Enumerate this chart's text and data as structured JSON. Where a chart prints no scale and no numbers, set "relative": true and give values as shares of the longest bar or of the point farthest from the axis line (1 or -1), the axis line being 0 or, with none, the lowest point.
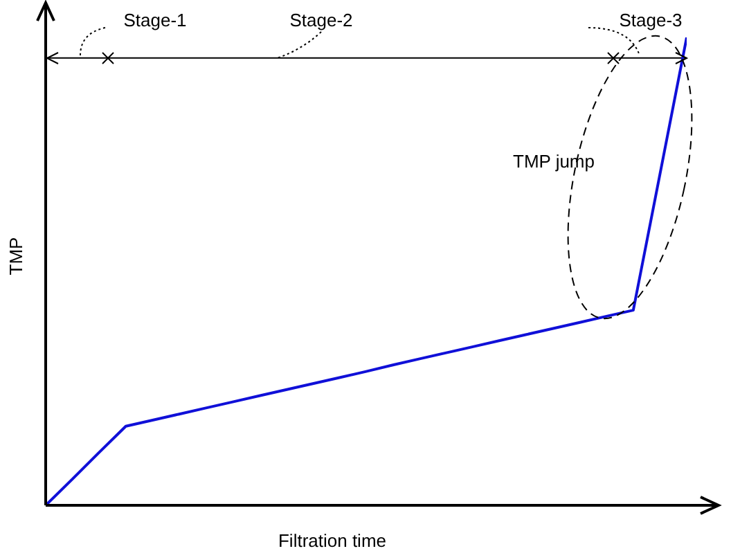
{
  "chart_data": {
    "type": "line",
    "relative": true,
    "xlabel": "Filtration time",
    "ylabel": "TMP",
    "categories": [
      null,
      null,
      null,
      null,
      null,
      null,
      null,
      null,
      null,
      null,
      null,
      null,
      null,
      null,
      null,
      null,
      null,
      null,
      null,
      null,
      null,
      null,
      null,
      null,
      null
    ],
    "series": [
      {
        "color": "#1010d8",
        "values": [
          0,
          0.056,
          0.113,
          0.169,
          0.182,
          0.195,
          0.208,
          0.221,
          0.234,
          0.247,
          0.26,
          0.273,
          0.286,
          0.3,
          0.313,
          0.326,
          0.339,
          0.352,
          0.365,
          0.378,
          0.391,
          0.404,
          0.417,
          0.708,
          1
        ]
      }
    ],
    "ref_lines": [
      {
        "axis": "y",
        "value": 0.956,
        "color": "#000000"
      }
    ],
    "annotations": [
      "Stage-1",
      "Stage-2",
      "Stage-3",
      "TMP jump"
    ],
    "grid": false,
    "legend": false,
    "marker": "none",
    "line_style": "solid"
  }
}
